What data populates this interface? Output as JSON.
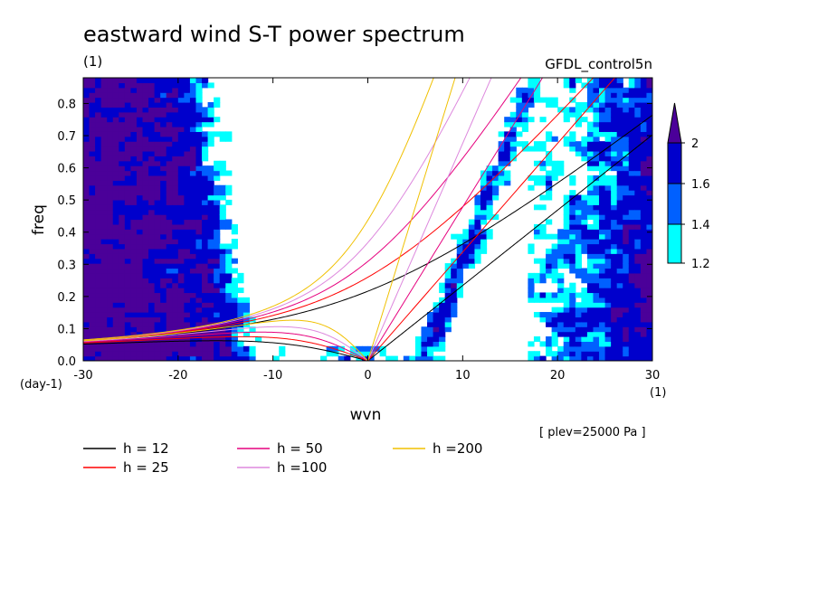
{
  "title": "eastward wind S-T power spectrum",
  "subtitle_left": "(1)",
  "subtitle_right": "GFDL_control5n",
  "note": "[ plev=25000 Pa ]",
  "colors": {
    "level_1_2": "#00ffff",
    "level_1_4": "#0060ff",
    "level_1_6": "#0000cc",
    "level_2": "#4b0099"
  },
  "chart_data": {
    "type": "heatmap",
    "title": "eastward wind S-T power spectrum",
    "xlabel": "wvn",
    "ylabel": "freq",
    "x_unit": "(1)",
    "y_unit": "(day-1)",
    "xlim": [
      -30,
      30
    ],
    "ylim": [
      0,
      0.88
    ],
    "x_ticks": [
      -30,
      -20,
      -10,
      0,
      10,
      20,
      30
    ],
    "y_ticks": [
      0.0,
      0.1,
      0.2,
      0.3,
      0.4,
      0.5,
      0.6,
      0.7,
      0.8
    ],
    "x_tick_labels": [
      "-30",
      "-20",
      "-10",
      "0",
      "10",
      "20",
      "30"
    ],
    "y_tick_labels": [
      "0.0",
      "0.1",
      "0.2",
      "0.3",
      "0.4",
      "0.5",
      "0.6",
      "0.7",
      "0.8"
    ],
    "colorbar": {
      "levels": [
        1.2,
        1.4,
        1.6,
        2
      ],
      "labels": [
        "1.2",
        "1.4",
        "1.6",
        "2"
      ],
      "colors": [
        "#00ffff",
        "#0060ff",
        "#0000cc",
        "#4b0099"
      ]
    },
    "dispersion_curves": [
      {
        "name": "h = 12",
        "h": 12,
        "color": "#000000"
      },
      {
        "name": "h = 25",
        "h": 25,
        "color": "#ff0000"
      },
      {
        "name": "h = 50",
        "h": 50,
        "color": "#e6007e"
      },
      {
        "name": "h =100",
        "h": 100,
        "color": "#dd88dd"
      },
      {
        "name": "h =200",
        "h": 200,
        "color": "#f0c000"
      }
    ]
  }
}
